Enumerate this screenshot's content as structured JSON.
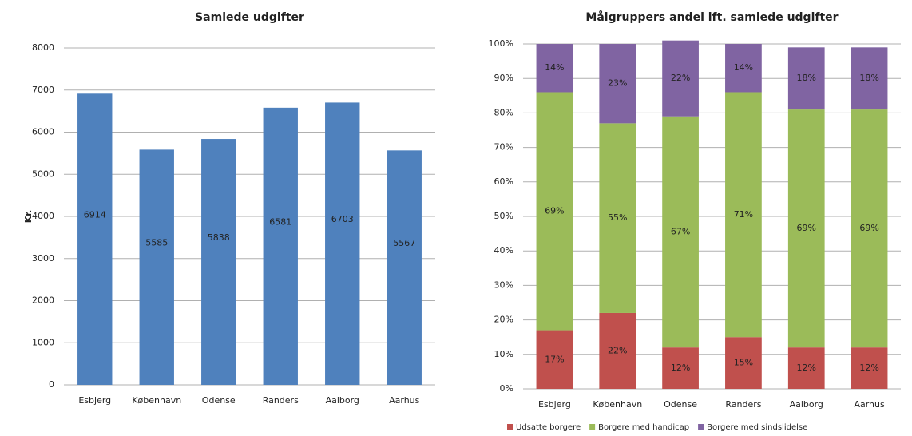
{
  "chart_data": [
    {
      "type": "bar",
      "title": "Samlede udgifter",
      "y_label": "Kr.",
      "categories": [
        "Esbjerg",
        "København",
        "Odense",
        "Randers",
        "Aalborg",
        "Aarhus"
      ],
      "values": [
        6914,
        5585,
        5838,
        6581,
        6703,
        5567
      ],
      "color": "#4f81bd",
      "ylim": [
        0,
        8000
      ],
      "yticks": [
        0,
        1000,
        2000,
        3000,
        4000,
        5000,
        6000,
        7000,
        8000
      ],
      "grid": true
    },
    {
      "type": "stacked_bar",
      "title": "Målgruppers andel ift. samlede udgifter",
      "categories": [
        "Esbjerg",
        "København",
        "Odense",
        "Randers",
        "Aalborg",
        "Aarhus"
      ],
      "series": [
        {
          "name": "Udsatte borgere",
          "color": "#c0504d",
          "values": [
            17,
            22,
            12,
            15,
            12,
            12
          ],
          "value_labels": [
            "17%",
            "22%",
            "12%",
            "15%",
            "12%",
            "12%"
          ]
        },
        {
          "name": "Borgere med handicap",
          "color": "#9bbb59",
          "values": [
            69,
            55,
            67,
            71,
            69,
            69
          ],
          "value_labels": [
            "69%",
            "55%",
            "67%",
            "71%",
            "69%",
            "69%"
          ]
        },
        {
          "name": "Borgere med sindslidelse",
          "color": "#8064a2",
          "values": [
            14,
            23,
            22,
            14,
            18,
            18
          ],
          "value_labels": [
            "14%",
            "23%",
            "22%",
            "14%",
            "18%",
            "18%"
          ]
        }
      ],
      "ylim": [
        0,
        100
      ],
      "yticks": [
        {
          "value": 0,
          "label": "0%"
        },
        {
          "value": 10,
          "label": "10%"
        },
        {
          "value": 20,
          "label": "20%"
        },
        {
          "value": 30,
          "label": "30%"
        },
        {
          "value": 40,
          "label": "40%"
        },
        {
          "value": 50,
          "label": "50%"
        },
        {
          "value": 60,
          "label": "60%"
        },
        {
          "value": 70,
          "label": "70%"
        },
        {
          "value": 80,
          "label": "80%"
        },
        {
          "value": 90,
          "label": "90%"
        },
        {
          "value": 100,
          "label": "100%"
        }
      ],
      "grid": true,
      "legend": "bottom"
    }
  ]
}
